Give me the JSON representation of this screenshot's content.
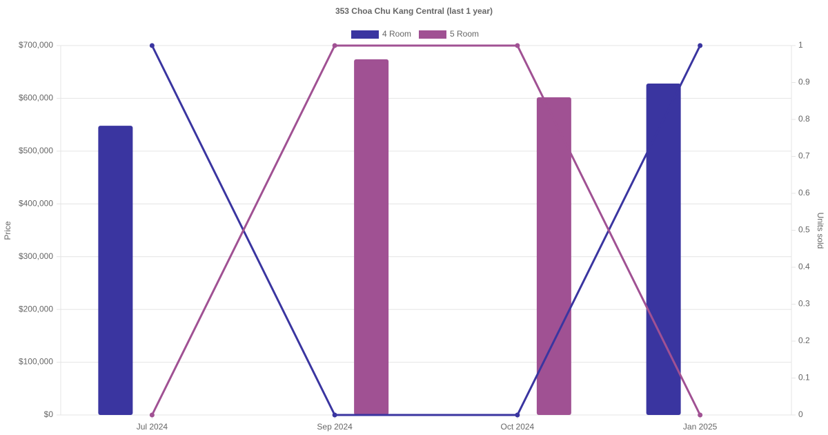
{
  "chart_data": {
    "type": "bar-line",
    "title": "353 Choa Chu Kang Central (last 1 year)",
    "y_label": "Price",
    "y2_label": "Units sold",
    "categories": [
      "Jul 2024",
      "Sep 2024",
      "Oct 2024",
      "Jan 2025"
    ],
    "series": [
      {
        "name": "4 Room",
        "color": "#3a35a0",
        "values": [
          548000,
          null,
          null,
          628000
        ],
        "units": [
          1,
          0,
          0,
          1
        ]
      },
      {
        "name": "5 Room",
        "color": "#a05193",
        "values": [
          null,
          674000,
          602000,
          null
        ],
        "units": [
          0,
          1,
          1,
          0
        ]
      }
    ],
    "ylim": [
      0,
      700000
    ],
    "yticks": [
      {
        "value": 0,
        "label": "$0"
      },
      {
        "value": 100000,
        "label": "$100,000"
      },
      {
        "value": 200000,
        "label": "$200,000"
      },
      {
        "value": 300000,
        "label": "$300,000"
      },
      {
        "value": 400000,
        "label": "$400,000"
      },
      {
        "value": 500000,
        "label": "$500,000"
      },
      {
        "value": 600000,
        "label": "$600,000"
      },
      {
        "value": 700000,
        "label": "$700,000"
      }
    ],
    "y2lim": [
      0,
      1
    ],
    "y2ticks": [
      0,
      0.1,
      0.2,
      0.3,
      0.4,
      0.5,
      0.6,
      0.7,
      0.8,
      0.9,
      1
    ],
    "grid": true,
    "legend": "top"
  }
}
